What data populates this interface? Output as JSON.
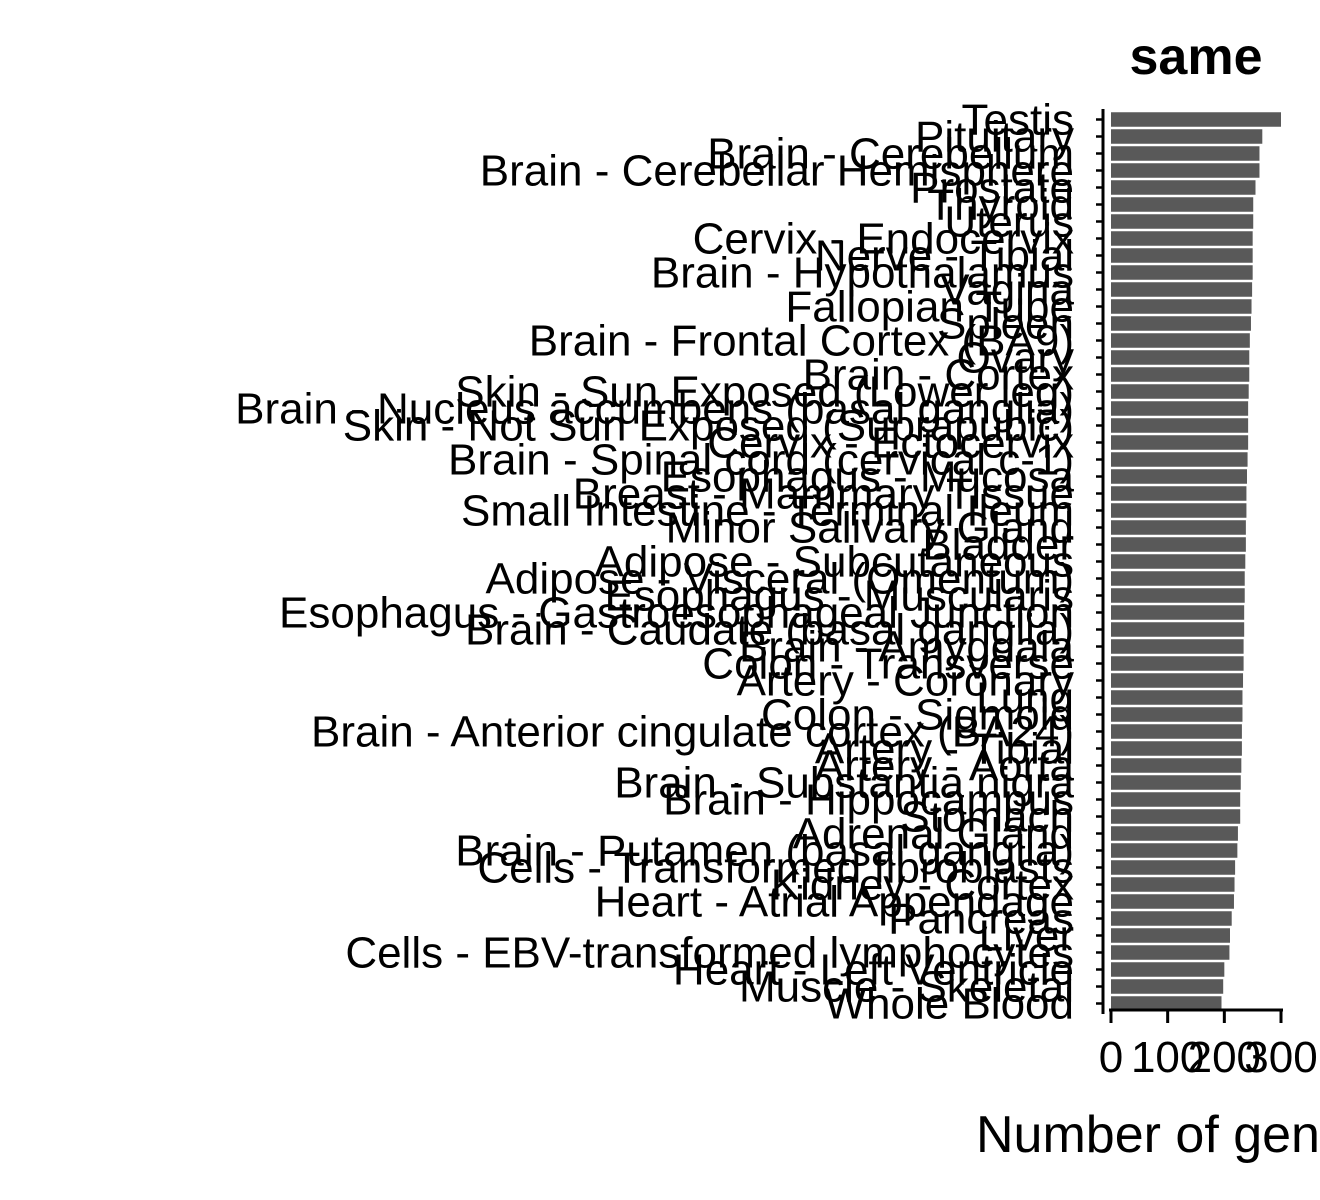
{
  "colors": {
    "bar": "#595959",
    "axis": "#000000",
    "background": "#ffffff"
  },
  "chart_data": {
    "type": "bar",
    "orientation": "horizontal",
    "title": "same",
    "xlabel": "Number of genes",
    "ylabel": "",
    "xlim": [
      0,
      300
    ],
    "xticks": [
      0,
      100,
      200,
      300
    ],
    "grid": false,
    "legend": "none",
    "categories": [
      "Testis",
      "Pituitary",
      "Brain - Cerebellum",
      "Brain - Cerebellar Hemisphere",
      "Prostate",
      "Thyroid",
      "Uterus",
      "Cervix - Endocervix",
      "Nerve - Tibial",
      "Brain - Hypothalamus",
      "Vagina",
      "Fallopian Tube",
      "Spleen",
      "Brain - Frontal Cortex (BA9)",
      "Ovary",
      "Brain - Cortex",
      "Skin - Sun Exposed (Lower leg)",
      "Brain - Nucleus accumbens (basal ganglia)",
      "Skin - Not Sun Exposed (Suprapubic)",
      "Cervix - Ectocervix",
      "Brain - Spinal cord (cervical c-1)",
      "Esophagus - Mucosa",
      "Breast - Mammary Tissue",
      "Small Intestine - Terminal Ileum",
      "Minor Salivary Gland",
      "Bladder",
      "Adipose - Subcutaneous",
      "Adipose - Visceral (Omentum)",
      "Esophagus - Muscularis",
      "Esophagus - Gastroesophageal Junction",
      "Brain - Caudate (basal ganglia)",
      "Brain - Amygdala",
      "Colon - Transverse",
      "Artery - Coronary",
      "Lung",
      "Colon - Sigmoid",
      "Brain - Anterior cingulate cortex (BA24)",
      "Artery - Tibial",
      "Artery - Aorta",
      "Brain - Substantia nigra",
      "Brain - Hippocampus",
      "Stomach",
      "Adrenal Gland",
      "Brain - Putamen (basal ganglia)",
      "Cells - Transformed fibroblasts",
      "Kidney - Cortex",
      "Heart - Atrial Appendage",
      "Pancreas",
      "Liver",
      "Cells - EBV-transformed lymphocytes",
      "Heart - Left Ventricle",
      "Muscle - Skeletal",
      "Whole Blood"
    ],
    "values": [
      300,
      267,
      262,
      262,
      255,
      251,
      251,
      250,
      250,
      250,
      249,
      248,
      247,
      245,
      244,
      244,
      243,
      242,
      242,
      242,
      241,
      240,
      239,
      239,
      238,
      238,
      237,
      236,
      236,
      235,
      235,
      234,
      234,
      233,
      232,
      232,
      231,
      231,
      230,
      229,
      228,
      228,
      224,
      223,
      219,
      218,
      217,
      213,
      210,
      209,
      200,
      198,
      195
    ]
  }
}
